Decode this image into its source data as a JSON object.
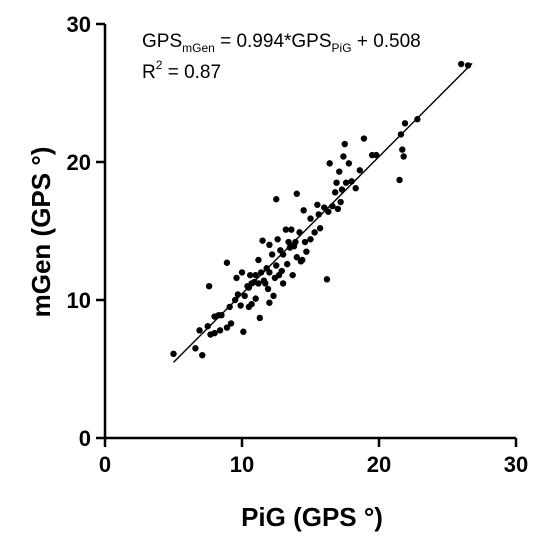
{
  "chart_data": {
    "type": "scatter",
    "xlabel": "PiG (GPS °)",
    "ylabel": "mGen (GPS °)",
    "xlim": [
      0,
      30
    ],
    "ylim": [
      0,
      30
    ],
    "x_ticks": [
      "0",
      "10",
      "20",
      "30"
    ],
    "y_ticks": [
      "0",
      "10",
      "20",
      "30"
    ],
    "grid": false,
    "regression": {
      "slope": 0.994,
      "intercept": 0.508,
      "x_range": [
        5.0,
        26.8
      ]
    },
    "annotation": {
      "eq_lhs": "GPS",
      "eq_lhs_sub": "mGen",
      "eq_mid": " = 0.994*GPS",
      "eq_mid_sub": "PiG",
      "eq_rhs": " + 0.508",
      "r2_prefix": "R",
      "r2_sup": "2",
      "r2_value": " = 0.87"
    },
    "points": [
      [
        5.0,
        6.1
      ],
      [
        6.6,
        6.5
      ],
      [
        6.9,
        7.8
      ],
      [
        7.1,
        6.0
      ],
      [
        7.5,
        8.1
      ],
      [
        7.6,
        11.0
      ],
      [
        7.7,
        7.5
      ],
      [
        8.0,
        7.6
      ],
      [
        8.0,
        8.8
      ],
      [
        8.3,
        8.9
      ],
      [
        8.5,
        8.9
      ],
      [
        8.4,
        7.8
      ],
      [
        8.9,
        8.0
      ],
      [
        8.9,
        12.7
      ],
      [
        9.1,
        9.5
      ],
      [
        9.2,
        8.3
      ],
      [
        9.5,
        10.0
      ],
      [
        9.6,
        11.6
      ],
      [
        9.7,
        10.4
      ],
      [
        9.9,
        9.6
      ],
      [
        10.0,
        12.0
      ],
      [
        10.1,
        7.7
      ],
      [
        10.2,
        10.3
      ],
      [
        10.4,
        11.0
      ],
      [
        10.5,
        10.9
      ],
      [
        10.5,
        9.5
      ],
      [
        10.6,
        11.8
      ],
      [
        10.7,
        11.2
      ],
      [
        10.7,
        9.7
      ],
      [
        10.9,
        11.3
      ],
      [
        11.0,
        11.8
      ],
      [
        11.0,
        10.1
      ],
      [
        11.2,
        12.9
      ],
      [
        11.2,
        11.2
      ],
      [
        11.3,
        8.7
      ],
      [
        11.4,
        12.0
      ],
      [
        11.5,
        14.3
      ],
      [
        11.6,
        11.4
      ],
      [
        11.7,
        11.2
      ],
      [
        11.8,
        12.3
      ],
      [
        11.9,
        10.8
      ],
      [
        12.0,
        14.0
      ],
      [
        12.0,
        12.0
      ],
      [
        12.0,
        9.8
      ],
      [
        12.2,
        13.3
      ],
      [
        12.3,
        10.3
      ],
      [
        12.4,
        11.6
      ],
      [
        12.5,
        12.5
      ],
      [
        12.5,
        17.3
      ],
      [
        12.6,
        14.4
      ],
      [
        12.7,
        11.8
      ],
      [
        12.8,
        13.6
      ],
      [
        12.9,
        12.1
      ],
      [
        13.0,
        13.3
      ],
      [
        13.0,
        11.2
      ],
      [
        13.2,
        15.1
      ],
      [
        13.3,
        12.6
      ],
      [
        13.4,
        14.2
      ],
      [
        13.5,
        13.8
      ],
      [
        13.6,
        15.1
      ],
      [
        13.7,
        11.8
      ],
      [
        13.8,
        13.9
      ],
      [
        13.9,
        14.2
      ],
      [
        14.0,
        17.7
      ],
      [
        14.0,
        13.1
      ],
      [
        14.2,
        14.9
      ],
      [
        14.3,
        12.8
      ],
      [
        14.4,
        12.9
      ],
      [
        14.5,
        16.5
      ],
      [
        14.6,
        14.2
      ],
      [
        14.7,
        13.5
      ],
      [
        15.0,
        15.9
      ],
      [
        15.0,
        14.4
      ],
      [
        15.3,
        14.9
      ],
      [
        15.5,
        16.9
      ],
      [
        15.6,
        16.2
      ],
      [
        15.7,
        15.2
      ],
      [
        16.0,
        16.7
      ],
      [
        16.2,
        11.5
      ],
      [
        16.3,
        16.4
      ],
      [
        16.4,
        19.9
      ],
      [
        16.6,
        16.8
      ],
      [
        16.8,
        17.8
      ],
      [
        16.9,
        18.5
      ],
      [
        17.0,
        16.6
      ],
      [
        17.1,
        19.3
      ],
      [
        17.2,
        17.1
      ],
      [
        17.3,
        18.0
      ],
      [
        17.4,
        20.4
      ],
      [
        17.5,
        21.3
      ],
      [
        17.6,
        18.5
      ],
      [
        17.8,
        19.9
      ],
      [
        18.0,
        18.6
      ],
      [
        18.3,
        18.1
      ],
      [
        18.6,
        19.4
      ],
      [
        18.9,
        21.7
      ],
      [
        19.5,
        20.5
      ],
      [
        19.8,
        20.5
      ],
      [
        21.5,
        18.7
      ],
      [
        21.6,
        22.0
      ],
      [
        21.7,
        20.9
      ],
      [
        21.8,
        20.4
      ],
      [
        21.9,
        22.8
      ],
      [
        22.8,
        23.1
      ],
      [
        26.0,
        27.1
      ],
      [
        26.5,
        27.0
      ]
    ]
  }
}
